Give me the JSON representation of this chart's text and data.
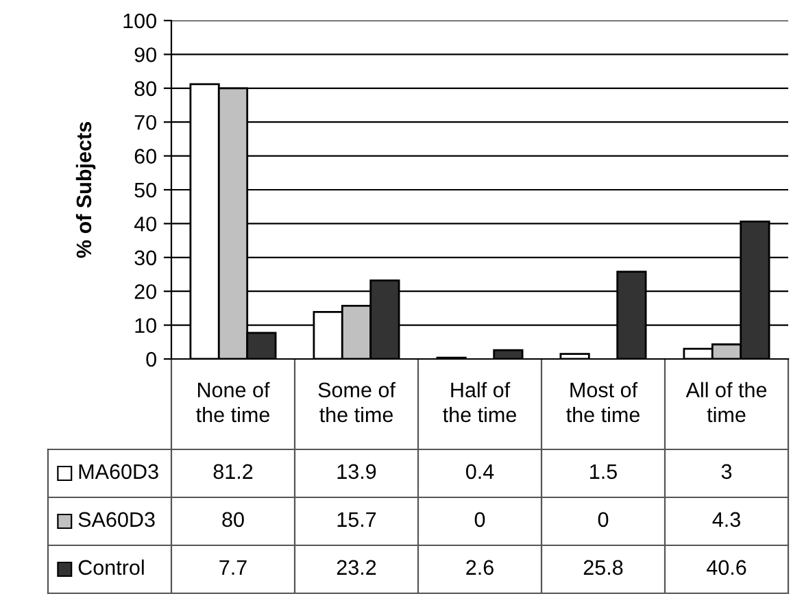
{
  "chart_data": {
    "type": "bar",
    "ylabel": "% of Subjects",
    "categories": [
      "None of\nthe time",
      "Some of\nthe time",
      "Half of\nthe time",
      "Most of\nthe time",
      "All of the\ntime"
    ],
    "series": [
      {
        "name": "MA60D3",
        "color": "#ffffff",
        "values": [
          81.2,
          13.9,
          0.4,
          1.5,
          3
        ]
      },
      {
        "name": "SA60D3",
        "color": "#c0c0c0",
        "values": [
          80,
          15.7,
          0,
          0,
          4.3
        ]
      },
      {
        "name": "Control",
        "color": "#333333",
        "values": [
          7.7,
          23.2,
          2.6,
          25.8,
          40.6
        ]
      }
    ],
    "ylim": [
      0,
      100
    ],
    "yticks": [
      0,
      10,
      20,
      30,
      40,
      50,
      60,
      70,
      80,
      90,
      100
    ],
    "grid": "y",
    "legend": "bottom left",
    "data_labels": true
  }
}
